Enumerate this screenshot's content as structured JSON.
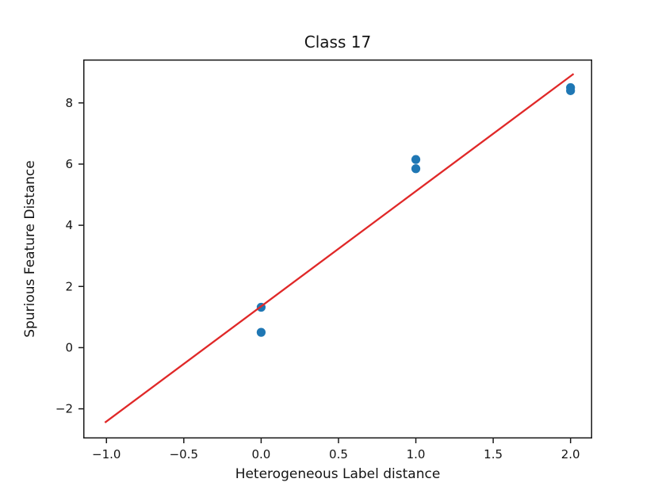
{
  "chart_data": {
    "type": "scatter",
    "title": "Class 17",
    "xlabel": "Heterogeneous Label distance",
    "ylabel": "Spurious Feature Distance",
    "xlim": [
      -1.15,
      2.14
    ],
    "ylim": [
      -2.97,
      9.42
    ],
    "grid": false,
    "xticks": [
      {
        "value": -1.0,
        "label": "−1.0"
      },
      {
        "value": -0.5,
        "label": "−0.5"
      },
      {
        "value": 0.0,
        "label": "0.0"
      },
      {
        "value": 0.5,
        "label": "0.5"
      },
      {
        "value": 1.0,
        "label": "1.0"
      },
      {
        "value": 1.5,
        "label": "1.5"
      },
      {
        "value": 2.0,
        "label": "2.0"
      }
    ],
    "yticks": [
      {
        "value": -2,
        "label": "−2"
      },
      {
        "value": 0,
        "label": "0"
      },
      {
        "value": 2,
        "label": "2"
      },
      {
        "value": 4,
        "label": "4"
      },
      {
        "value": 6,
        "label": "6"
      },
      {
        "value": 8,
        "label": "8"
      }
    ],
    "series": [
      {
        "name": "samples",
        "type": "scatter",
        "color": "#1f77b4",
        "marker": "circle",
        "marker_radius": 5.6,
        "points": [
          [
            0,
            1.32
          ],
          [
            0,
            0.5
          ],
          [
            1,
            6.15
          ],
          [
            1,
            5.85
          ],
          [
            2,
            8.5
          ],
          [
            2,
            8.4
          ]
        ]
      },
      {
        "name": "linear-fit",
        "type": "line",
        "color": "#e02828",
        "line_width": 2.3,
        "points": [
          [
            -1.01,
            -2.45
          ],
          [
            2.02,
            8.95
          ]
        ]
      }
    ]
  },
  "colors": {
    "background": "#ffffff",
    "frame": "#1a1a1a",
    "tick": "#1a1a1a",
    "text": "#141414"
  }
}
